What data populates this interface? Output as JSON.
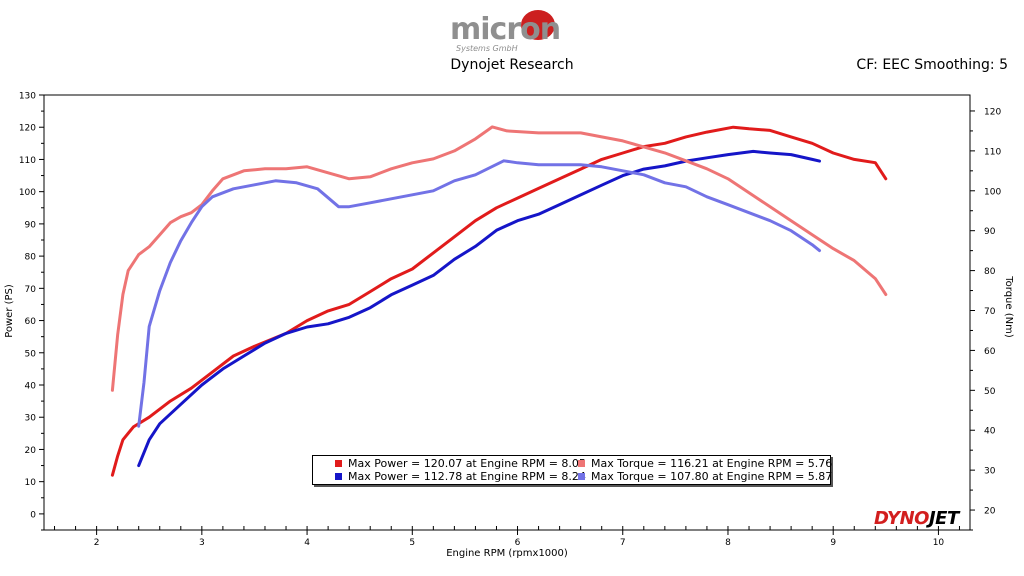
{
  "header": {
    "logo": "micron Systems GmbH",
    "title": "Dynojet Research",
    "subtitle": "CF: EEC Smoothing: 5"
  },
  "brand": {
    "part1": "DYNO",
    "part2": "JET"
  },
  "colors": {
    "power_run1": "#e11b1b",
    "power_run2": "#1515c8",
    "torque_run1": "#ee7575",
    "torque_run2": "#7272e6"
  },
  "legend": [
    {
      "text": "Max Power = 120.07 at Engine RPM = 8.05",
      "color": "#e11b1b"
    },
    {
      "text": "Max Torque = 116.21 at Engine RPM = 5.76",
      "color": "#ee7575"
    },
    {
      "text": "Max Power = 112.78 at Engine RPM = 8.24",
      "color": "#1515c8"
    },
    {
      "text": "Max Torque = 107.80 at Engine RPM = 5.87",
      "color": "#7272e6"
    }
  ],
  "chart_data": {
    "type": "line",
    "title": "Dynojet Research",
    "xlabel": "Engine RPM (rpmx1000)",
    "ylabel": "Power (PS)",
    "y2label": "Torque (Nm)",
    "xlim": [
      1.5,
      10.3
    ],
    "ylim": [
      -5,
      130
    ],
    "y2lim": [
      15,
      124
    ],
    "x_ticks": [
      2,
      3,
      4,
      5,
      6,
      7,
      8,
      9,
      10
    ],
    "y_ticks": [
      0,
      10,
      20,
      30,
      40,
      50,
      60,
      70,
      80,
      90,
      100,
      110,
      120,
      130
    ],
    "y2_ticks": [
      20,
      30,
      40,
      50,
      60,
      70,
      80,
      90,
      100,
      110,
      120
    ],
    "grid": false,
    "legend_position": "bottom-center",
    "series": [
      {
        "axis": "left",
        "color": "#e11b1b",
        "points": [
          [
            2.15,
            12
          ],
          [
            2.2,
            18
          ],
          [
            2.25,
            23
          ],
          [
            2.35,
            27
          ],
          [
            2.5,
            30
          ],
          [
            2.7,
            35
          ],
          [
            2.9,
            39
          ],
          [
            3.1,
            44
          ],
          [
            3.3,
            49
          ],
          [
            3.5,
            52
          ],
          [
            3.8,
            56
          ],
          [
            4.0,
            60
          ],
          [
            4.2,
            63
          ],
          [
            4.4,
            65
          ],
          [
            4.6,
            69
          ],
          [
            4.8,
            73
          ],
          [
            5.0,
            76
          ],
          [
            5.2,
            81
          ],
          [
            5.4,
            86
          ],
          [
            5.6,
            91
          ],
          [
            5.8,
            95
          ],
          [
            6.0,
            98
          ],
          [
            6.2,
            101
          ],
          [
            6.4,
            104
          ],
          [
            6.6,
            107
          ],
          [
            6.8,
            110
          ],
          [
            7.0,
            112
          ],
          [
            7.2,
            114
          ],
          [
            7.4,
            115
          ],
          [
            7.6,
            117
          ],
          [
            7.8,
            118.5
          ],
          [
            8.05,
            120
          ],
          [
            8.2,
            119.5
          ],
          [
            8.4,
            119
          ],
          [
            8.6,
            117
          ],
          [
            8.8,
            115
          ],
          [
            9.0,
            112
          ],
          [
            9.2,
            110
          ],
          [
            9.4,
            109
          ],
          [
            9.5,
            104
          ]
        ]
      },
      {
        "axis": "left",
        "color": "#1515c8",
        "points": [
          [
            2.4,
            15
          ],
          [
            2.5,
            23
          ],
          [
            2.6,
            28
          ],
          [
            2.8,
            34
          ],
          [
            3.0,
            40
          ],
          [
            3.2,
            45
          ],
          [
            3.4,
            49
          ],
          [
            3.6,
            53
          ],
          [
            3.8,
            56
          ],
          [
            4.0,
            58
          ],
          [
            4.2,
            59
          ],
          [
            4.4,
            61
          ],
          [
            4.6,
            64
          ],
          [
            4.8,
            68
          ],
          [
            5.0,
            71
          ],
          [
            5.2,
            74
          ],
          [
            5.4,
            79
          ],
          [
            5.6,
            83
          ],
          [
            5.8,
            88
          ],
          [
            6.0,
            91
          ],
          [
            6.2,
            93
          ],
          [
            6.4,
            96
          ],
          [
            6.6,
            99
          ],
          [
            6.8,
            102
          ],
          [
            7.0,
            105
          ],
          [
            7.2,
            107
          ],
          [
            7.4,
            108
          ],
          [
            7.6,
            109.5
          ],
          [
            7.8,
            110.5
          ],
          [
            8.0,
            111.5
          ],
          [
            8.24,
            112.5
          ],
          [
            8.4,
            112
          ],
          [
            8.6,
            111.5
          ],
          [
            8.8,
            110
          ],
          [
            8.87,
            109.5
          ]
        ]
      },
      {
        "axis": "right",
        "color": "#ee7575",
        "points": [
          [
            2.15,
            50
          ],
          [
            2.2,
            64
          ],
          [
            2.25,
            74
          ],
          [
            2.3,
            80
          ],
          [
            2.4,
            84
          ],
          [
            2.5,
            86
          ],
          [
            2.6,
            89
          ],
          [
            2.7,
            92
          ],
          [
            2.8,
            93.5
          ],
          [
            2.9,
            94.5
          ],
          [
            3.0,
            96.5
          ],
          [
            3.1,
            100
          ],
          [
            3.2,
            103
          ],
          [
            3.4,
            105
          ],
          [
            3.6,
            105.5
          ],
          [
            3.8,
            105.5
          ],
          [
            4.0,
            106
          ],
          [
            4.2,
            104.5
          ],
          [
            4.4,
            103
          ],
          [
            4.6,
            103.5
          ],
          [
            4.8,
            105.5
          ],
          [
            5.0,
            107
          ],
          [
            5.2,
            108
          ],
          [
            5.4,
            110
          ],
          [
            5.6,
            113
          ],
          [
            5.76,
            116
          ],
          [
            5.9,
            115
          ],
          [
            6.2,
            114.5
          ],
          [
            6.4,
            114.5
          ],
          [
            6.6,
            114.5
          ],
          [
            6.8,
            113.5
          ],
          [
            7.0,
            112.5
          ],
          [
            7.2,
            111
          ],
          [
            7.4,
            109.5
          ],
          [
            7.6,
            107.5
          ],
          [
            7.8,
            105.5
          ],
          [
            8.0,
            103
          ],
          [
            8.2,
            99.5
          ],
          [
            8.4,
            96
          ],
          [
            8.6,
            92.5
          ],
          [
            8.8,
            89
          ],
          [
            9.0,
            85.5
          ],
          [
            9.2,
            82.5
          ],
          [
            9.4,
            78
          ],
          [
            9.5,
            74
          ]
        ]
      },
      {
        "axis": "right",
        "color": "#7272e6",
        "points": [
          [
            2.4,
            41
          ],
          [
            2.45,
            52
          ],
          [
            2.5,
            66
          ],
          [
            2.6,
            75
          ],
          [
            2.7,
            82
          ],
          [
            2.8,
            87.5
          ],
          [
            2.9,
            92
          ],
          [
            3.0,
            96
          ],
          [
            3.1,
            98.5
          ],
          [
            3.3,
            100.5
          ],
          [
            3.5,
            101.5
          ],
          [
            3.7,
            102.5
          ],
          [
            3.9,
            102
          ],
          [
            4.1,
            100.5
          ],
          [
            4.3,
            96
          ],
          [
            4.4,
            96
          ],
          [
            4.6,
            97
          ],
          [
            4.8,
            98
          ],
          [
            5.0,
            99
          ],
          [
            5.2,
            100
          ],
          [
            5.4,
            102.5
          ],
          [
            5.6,
            104
          ],
          [
            5.87,
            107.5
          ],
          [
            6.0,
            107
          ],
          [
            6.2,
            106.5
          ],
          [
            6.4,
            106.5
          ],
          [
            6.6,
            106.5
          ],
          [
            6.8,
            106
          ],
          [
            7.0,
            105
          ],
          [
            7.2,
            104
          ],
          [
            7.4,
            102
          ],
          [
            7.6,
            101
          ],
          [
            7.8,
            98.5
          ],
          [
            8.0,
            96.5
          ],
          [
            8.2,
            94.5
          ],
          [
            8.4,
            92.5
          ],
          [
            8.6,
            90
          ],
          [
            8.8,
            86.5
          ],
          [
            8.87,
            85
          ]
        ]
      }
    ]
  }
}
